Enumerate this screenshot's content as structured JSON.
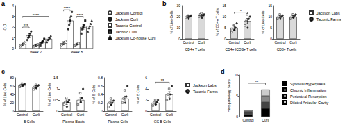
{
  "chart_data": [
    {
      "panel": "a",
      "type": "bar",
      "ylabel": "O.D",
      "categories": [
        "Week 2",
        "Week 8"
      ],
      "ylim": [
        0,
        4
      ],
      "yticks": [
        0,
        1,
        2,
        3,
        4
      ],
      "legend": "right",
      "series": [
        {
          "name": "Jackson Control",
          "marker": "circle-open",
          "color": "#000000",
          "values": [
            0.4,
            0.5
          ],
          "errors": [
            0.1,
            0.15
          ],
          "points": [
            [
              0.2,
              0.3,
              0.4,
              0.5,
              0.6
            ],
            [
              0.3,
              0.4,
              0.5,
              0.6,
              0.7
            ]
          ]
        },
        {
          "name": "Jackson Curli",
          "marker": "circle",
          "color": "#000000",
          "values": [
            1.2,
            2.6
          ],
          "errors": [
            0.2,
            0.3
          ],
          "points": [
            [
              0.8,
              1.0,
              1.2,
              1.4,
              1.6
            ],
            [
              1.8,
              2.2,
              2.6,
              3.0,
              3.4
            ]
          ]
        },
        {
          "name": "Taconic Control",
          "marker": "square-open",
          "color": "#000000",
          "values": [
            0.3,
            0.4
          ],
          "errors": [
            0.05,
            0.05
          ],
          "points": [
            [
              0.2,
              0.25,
              0.3,
              0.35,
              0.4
            ],
            [
              0.3,
              0.35,
              0.4,
              0.45,
              0.5
            ]
          ]
        },
        {
          "name": "Taconic Curli",
          "marker": "square",
          "color": "#000000",
          "values": [
            0.6,
            2.0
          ],
          "errors": [
            0.1,
            0.2
          ],
          "points": [
            [
              0.3,
              0.5,
              0.6,
              0.7,
              0.9
            ],
            [
              1.4,
              1.8,
              2.0,
              2.2,
              2.6
            ]
          ]
        },
        {
          "name": "Jackson Co-house Curli",
          "marker": "triangle",
          "color": "#000000",
          "values": [
            0.9,
            2.1
          ],
          "errors": [
            0.1,
            0.2
          ],
          "points": [
            [
              0.6,
              0.8,
              0.9,
              1.0,
              1.2
            ],
            [
              1.6,
              1.9,
              2.1,
              2.3,
              2.6
            ]
          ]
        }
      ],
      "annotations": [
        {
          "text": "***",
          "category": "Week 2",
          "from": "Jackson Control",
          "to": "Jackson Curli",
          "y": 2.0
        },
        {
          "text": "****",
          "category": "Week 2",
          "from": "Jackson Control",
          "to": "Jackson Co-house Curli",
          "y": 3.0
        },
        {
          "text": "****",
          "category": "Week 8",
          "from": "Jackson Control",
          "to": "Jackson Curli",
          "y": 3.6
        },
        {
          "text": "****",
          "category": "Week 8",
          "from": "Taconic Control",
          "to": "Taconic Curli",
          "y": 3.0
        }
      ]
    },
    {
      "panel": "b",
      "type": "bar",
      "color": "#d9d9d9",
      "legend": "right",
      "series": [
        {
          "name": "Jackson Labs",
          "marker": "square-open",
          "color": "#000000"
        },
        {
          "name": "Taconic Farms",
          "marker": "circle",
          "color": "#000000"
        }
      ],
      "panels": [
        {
          "xlabel": "CD4+ T cells",
          "ylabel": "% of Live Cells",
          "categories": [
            "Control",
            "Curli"
          ],
          "ylim": [
            0,
            30
          ],
          "yticks": [
            0,
            10,
            20,
            30
          ],
          "values": [
            20,
            21
          ],
          "errors": [
            1,
            1
          ],
          "points": [
            [
              [
                19,
                20,
                21
              ],
              [
                20,
                22,
                23
              ]
            ],
            [
              [
                18,
                20,
                21
              ],
              [
                19,
                21,
                22
              ]
            ]
          ]
        },
        {
          "xlabel": "CD4+ ICOS+ T cells",
          "ylabel": "% of CD4+ T cells",
          "categories": [
            "Control",
            "Curli"
          ],
          "ylim": [
            0,
            15
          ],
          "yticks": [
            0,
            5,
            10,
            15
          ],
          "values": [
            5,
            8
          ],
          "errors": [
            1,
            1.2
          ],
          "points": [
            [
              [
                3,
                4,
                6
              ],
              [
                6,
                8,
                11
              ]
            ],
            [
              [
                4,
                5,
                7
              ],
              [
                5,
                9,
                10
              ]
            ]
          ],
          "annotations": [
            {
              "text": "*",
              "from": "Control",
              "to": "Curli",
              "y": 12
            }
          ]
        },
        {
          "xlabel": "CD8+ T cells",
          "ylabel": "% of Live Cells",
          "categories": [
            "Control",
            "Curli"
          ],
          "ylim": [
            0,
            15
          ],
          "yticks": [
            0,
            5,
            10,
            15
          ],
          "values": [
            10,
            10
          ],
          "errors": [
            0.5,
            0.5
          ],
          "points": [
            [
              [
                9,
                10,
                11
              ],
              [
                9,
                10,
                11
              ]
            ],
            [
              [
                9,
                10,
                10.5
              ],
              [
                9.5,
                10.5,
                11
              ]
            ]
          ]
        }
      ]
    },
    {
      "panel": "c",
      "type": "bar",
      "color": "#ffffff",
      "legend": "right",
      "series": [
        {
          "name": "Jackson Labs",
          "marker": "square-open",
          "color": "#000000"
        },
        {
          "name": "Taconic Farms",
          "marker": "circle",
          "color": "#000000"
        }
      ],
      "panels": [
        {
          "xlabel": "B Cells",
          "ylabel": "% of Live Cells",
          "categories": [
            "Control",
            "Curli"
          ],
          "ylim": [
            0,
            80
          ],
          "yticks": [
            0,
            20,
            40,
            60,
            80
          ],
          "values": [
            62,
            58
          ],
          "errors": [
            2,
            3
          ],
          "points": [
            [
              [
                58,
                62,
                66
              ],
              [
                52,
                58,
                63
              ]
            ],
            [
              [
                60,
                63,
                65
              ],
              [
                55,
                59,
                62
              ]
            ]
          ]
        },
        {
          "xlabel": "Plasma Blasts",
          "ylabel": "% of Live Cells",
          "categories": [
            "Control",
            "Curli"
          ],
          "ylim": [
            0,
            1.5
          ],
          "yticks": [
            0,
            0.5,
            1,
            1.5
          ],
          "values": [
            0.4,
            0.5
          ],
          "errors": [
            0.1,
            0.1
          ],
          "points": [
            [
              [
                0.3,
                0.4,
                0.6
              ],
              [
                0.3,
                0.5,
                0.8
              ]
            ],
            [
              [
                0.2,
                0.4,
                0.5
              ],
              [
                0.4,
                0.6,
                1.0
              ]
            ]
          ]
        },
        {
          "xlabel": "Plasma Cells",
          "ylabel": "% of B Cells",
          "categories": [
            "Control",
            "Curli"
          ],
          "ylim": [
            0,
            0.8
          ],
          "yticks": [
            0,
            0.2,
            0.4,
            0.6,
            0.8
          ],
          "values": [
            0.2,
            0.3
          ],
          "errors": [
            0.05,
            0.06
          ],
          "points": [
            [
              [
                0.1,
                0.2,
                0.3
              ],
              [
                0.2,
                0.3,
                0.5
              ]
            ],
            [
              [
                0.15,
                0.2,
                0.25
              ],
              [
                0.2,
                0.35,
                0.6
              ]
            ]
          ]
        },
        {
          "xlabel": "GC B Cells",
          "ylabel": "% of B Cells",
          "categories": [
            "Control",
            "Curli"
          ],
          "ylim": [
            0,
            6
          ],
          "yticks": [
            0,
            2,
            4,
            6
          ],
          "values": [
            1.5,
            3
          ],
          "errors": [
            0.3,
            0.5
          ],
          "points": [
            [
              [
                1,
                1.5,
                2
              ],
              [
                2,
                3,
                4
              ]
            ],
            [
              [
                1.2,
                1.6,
                2
              ],
              [
                2.2,
                3,
                4.5
              ]
            ]
          ],
          "annotations": [
            {
              "text": "**",
              "from": "Control",
              "to": "Curli",
              "y": 5.2
            }
          ]
        }
      ]
    },
    {
      "panel": "d",
      "type": "bar",
      "stacked": true,
      "ylabel": "Histopathology Score",
      "categories": [
        "Control",
        "Curli"
      ],
      "ylim": [
        0,
        10
      ],
      "yticks": [
        0,
        5,
        10
      ],
      "legend": "right",
      "series": [
        {
          "name": "Synovial Hyperplasia",
          "color": "#000000",
          "values": [
            0.5,
            2
          ]
        },
        {
          "name": "Chronic Inflammation",
          "color": "#444444",
          "values": [
            0.5,
            1.5
          ]
        },
        {
          "name": "Periosteal Resorption",
          "color": "#888888",
          "values": [
            0.3,
            1.5
          ]
        },
        {
          "name": "Dilated Articular Cavity",
          "color": "#cccccc",
          "values": [
            0.2,
            1.5
          ]
        }
      ],
      "annotations": [
        {
          "text": "**",
          "from": "Control",
          "to": "Curli",
          "y": 8
        }
      ]
    }
  ]
}
